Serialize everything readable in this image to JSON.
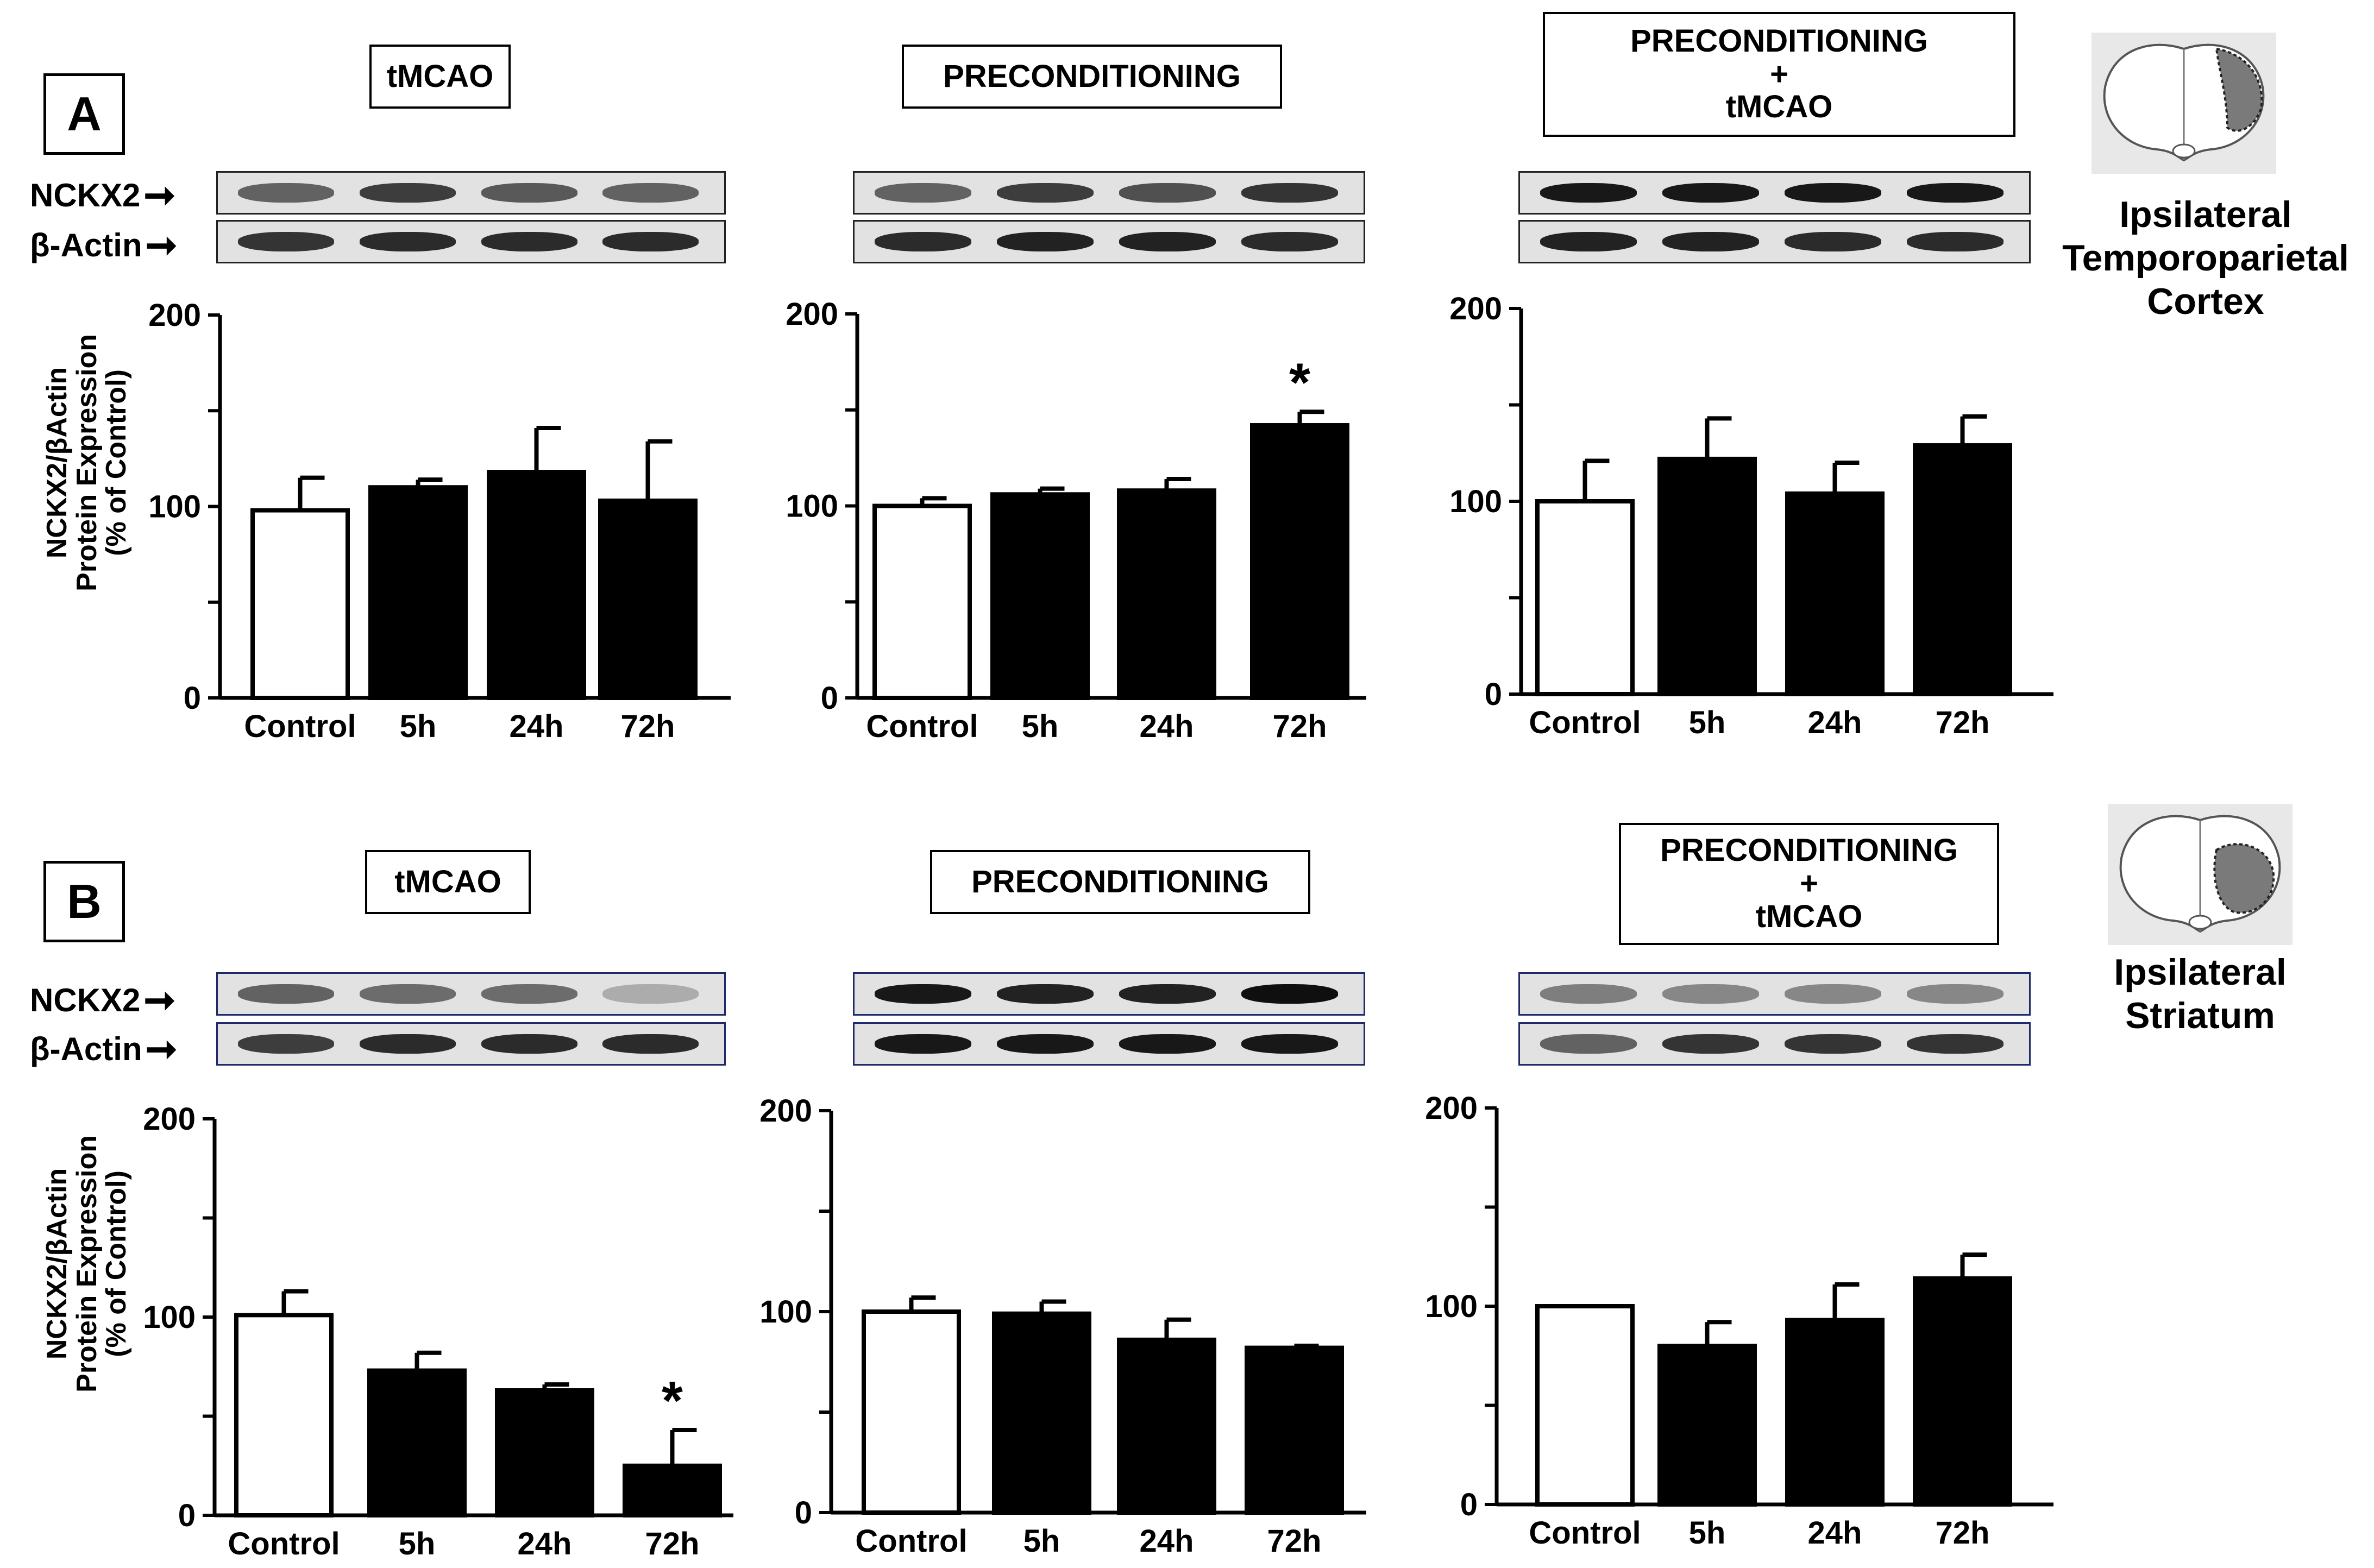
{
  "panels": [
    {
      "letter": "A",
      "region_label": [
        "Ipsilateral",
        "Temporoparietal",
        "Cortex"
      ],
      "blot_rows": [
        "NCKX2",
        "β-Actin"
      ],
      "ylabel": [
        "NCKX2/βActin",
        "Protein Expression",
        "(% of Control)"
      ]
    },
    {
      "letter": "B",
      "region_label": [
        "Ipsilateral",
        "Striatum"
      ],
      "blot_rows": [
        "NCKX2",
        "β-Actin"
      ],
      "ylabel": [
        "NCKX2/βActin",
        "Protein Expression",
        "(% of Control)"
      ]
    }
  ],
  "chart_data": [
    {
      "type": "bar",
      "panel": "A",
      "title": "tMCAO",
      "categories": [
        "Control",
        "5h",
        "24h",
        "72h"
      ],
      "values": [
        98,
        110,
        118,
        103
      ],
      "errors": [
        17,
        4,
        23,
        31
      ],
      "bar_fill": [
        "#ffffff",
        "#000000",
        "#000000",
        "#000000"
      ],
      "significant": [
        false,
        false,
        false,
        false
      ],
      "ylim": [
        0,
        200
      ],
      "yticks": [
        0,
        100,
        200
      ]
    },
    {
      "type": "bar",
      "panel": "A",
      "title": "PRECONDITIONING",
      "categories": [
        "Control",
        "5h",
        "24h",
        "72h"
      ],
      "values": [
        100,
        106,
        108,
        142
      ],
      "errors": [
        4,
        3,
        6,
        7
      ],
      "bar_fill": [
        "#ffffff",
        "#000000",
        "#000000",
        "#000000"
      ],
      "significant": [
        false,
        false,
        false,
        true
      ],
      "ylim": [
        0,
        200
      ],
      "yticks": [
        0,
        100,
        200
      ]
    },
    {
      "type": "bar",
      "panel": "A",
      "title": [
        "PRECONDITIONING",
        "+",
        "tMCAO"
      ],
      "categories": [
        "Control",
        "5h",
        "24h",
        "72h"
      ],
      "values": [
        100,
        122,
        104,
        129
      ],
      "errors": [
        21,
        21,
        16,
        15
      ],
      "bar_fill": [
        "#ffffff",
        "#000000",
        "#000000",
        "#000000"
      ],
      "significant": [
        false,
        false,
        false,
        false
      ],
      "ylim": [
        0,
        200
      ],
      "yticks": [
        0,
        100,
        200
      ]
    },
    {
      "type": "bar",
      "panel": "B",
      "title": "tMCAO",
      "categories": [
        "Control",
        "5h",
        "24h",
        "72h"
      ],
      "values": [
        101,
        73,
        63,
        25
      ],
      "errors": [
        12,
        9,
        3,
        18
      ],
      "bar_fill": [
        "#ffffff",
        "#000000",
        "#000000",
        "#000000"
      ],
      "significant": [
        false,
        false,
        false,
        true
      ],
      "ylim": [
        0,
        200
      ],
      "yticks": [
        0,
        100,
        200
      ]
    },
    {
      "type": "bar",
      "panel": "B",
      "title": "PRECONDITIONING",
      "categories": [
        "Control",
        "5h",
        "24h",
        "72h"
      ],
      "values": [
        100,
        99,
        86,
        82
      ],
      "errors": [
        7,
        6,
        10,
        1
      ],
      "bar_fill": [
        "#ffffff",
        "#000000",
        "#000000",
        "#000000"
      ],
      "significant": [
        false,
        false,
        false,
        false
      ],
      "ylim": [
        0,
        200
      ],
      "yticks": [
        0,
        100,
        200
      ]
    },
    {
      "type": "bar",
      "panel": "B",
      "title": [
        "PRECONDITIONING",
        "+",
        "tMCAO"
      ],
      "categories": [
        "Control",
        "5h",
        "24h",
        "72h"
      ],
      "values": [
        100,
        80,
        93,
        114
      ],
      "errors": [
        0,
        12,
        18,
        12
      ],
      "bar_fill": [
        "#ffffff",
        "#000000",
        "#000000",
        "#000000"
      ],
      "significant": [
        false,
        false,
        false,
        false
      ],
      "ylim": [
        0,
        200
      ],
      "yticks": [
        0,
        100,
        200
      ]
    }
  ],
  "significance_marker": "*"
}
